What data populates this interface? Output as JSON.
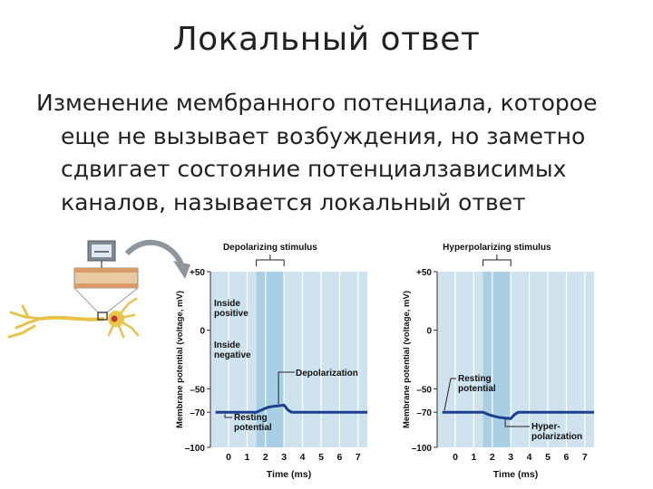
{
  "slide": {
    "title": "Локальный ответ",
    "lines": [
      "Изменение мембранного потенциала, которое",
      "еще не вызывает возбуждения, но заметно",
      "сдвигает состояние потенциалзависимых",
      "каналов, называется локальный ответ"
    ]
  },
  "figure": {
    "ylabel": "Membrane potential (voltage, mV)",
    "xlabel": "Time (ms)",
    "y_ticks": [
      "+50",
      "0",
      "–50",
      "–70",
      "–100"
    ],
    "x_ticks": [
      "0",
      "1",
      "2",
      "3",
      "4",
      "5",
      "6",
      "7"
    ],
    "left_panel": {
      "stimulus_label": "Depolarizing stimulus",
      "inside_positive": "Inside\npositive",
      "inside_negative": "Inside\nnegative",
      "event_label": "Depolarization",
      "resting_label": "Resting\npotential"
    },
    "right_panel": {
      "stimulus_label": "Hyperpolarizing stimulus",
      "resting_label": "Resting\npotential",
      "event_label": "Hyper-\npolarization"
    },
    "colors": {
      "panel_bg": "#cfe3ef",
      "stimulus_band": "#a9cfe4",
      "trace": "#1c3f8f",
      "grid": "#ffffff"
    }
  },
  "chart_data": [
    {
      "type": "line",
      "title": "Depolarizing stimulus",
      "xlabel": "Time (ms)",
      "ylabel": "Membrane potential (voltage, mV)",
      "xlim": [
        0,
        7
      ],
      "ylim": [
        -100,
        50
      ],
      "stimulus_interval": [
        1.5,
        3.0
      ],
      "series": [
        {
          "x": [
            -0.7,
            1.5,
            1.8,
            2.1,
            2.4,
            2.7,
            3.0,
            3.2,
            3.4,
            7.7
          ],
          "y": [
            -70,
            -70,
            -68,
            -66,
            -65,
            -64.5,
            -64,
            -68,
            -70,
            -70
          ]
        }
      ]
    },
    {
      "type": "line",
      "title": "Hyperpolarizing stimulus",
      "xlabel": "Time (ms)",
      "ylabel": "Membrane potential (voltage, mV)",
      "xlim": [
        0,
        7
      ],
      "ylim": [
        -100,
        50
      ],
      "stimulus_interval": [
        1.5,
        3.0
      ],
      "series": [
        {
          "x": [
            -0.7,
            1.5,
            1.8,
            2.1,
            2.4,
            2.7,
            3.0,
            3.2,
            3.4,
            7.7
          ],
          "y": [
            -70,
            -70,
            -72,
            -73.5,
            -74.5,
            -75,
            -75.5,
            -72,
            -70,
            -70
          ]
        }
      ]
    }
  ]
}
